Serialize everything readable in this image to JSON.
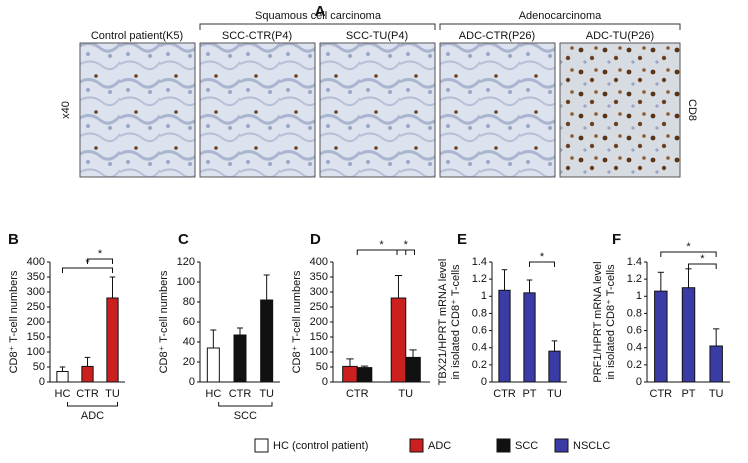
{
  "figure": {
    "panel_letters": [
      "A",
      "B",
      "C",
      "D",
      "E",
      "F"
    ],
    "image_groups": [
      "Squamous cell carcinoma",
      "Adenocarcinoma"
    ],
    "images": [
      "Control patient(K5)",
      "SCC-CTR(P4)",
      "SCC-TU(P4)",
      "ADC-CTR(P26)",
      "ADC-TU(P26)"
    ],
    "magnification": "x40",
    "stain": "CD8"
  },
  "legend": [
    {
      "label": "HC (control patient)",
      "color": "#ffffff"
    },
    {
      "label": "ADC",
      "color": "#cc1f1f"
    },
    {
      "label": "SCC",
      "color": "#111111"
    },
    {
      "label": "NSCLC",
      "color": "#3b3ba6"
    }
  ],
  "chart_data": [
    {
      "type": "bar",
      "ylabel": [
        "CD8⁺ T-cell numbers"
      ],
      "categories": [
        "HC",
        "CTR",
        "TU"
      ],
      "group_label": "ADC",
      "series": [
        {
          "colors": [
            "#ffffff",
            "#cc1f1f",
            "#cc1f1f"
          ],
          "values": [
            35,
            52,
            280
          ],
          "errors": [
            15,
            30,
            70
          ]
        }
      ],
      "ylim": [
        0,
        400
      ],
      "yticks": [
        0,
        50,
        100,
        150,
        200,
        250,
        300,
        350,
        400
      ],
      "significance": [
        "*",
        "*"
      ]
    },
    {
      "type": "bar",
      "ylabel": [
        "CD8⁺ T-cell numbers"
      ],
      "categories": [
        "HC",
        "CTR",
        "TU"
      ],
      "group_label": "SCC",
      "series": [
        {
          "colors": [
            "#ffffff",
            "#111111",
            "#111111"
          ],
          "values": [
            34,
            47,
            82
          ],
          "errors": [
            18,
            7,
            25
          ]
        }
      ],
      "ylim": [
        0,
        120
      ],
      "yticks": [
        0,
        20,
        40,
        60,
        80,
        100,
        120
      ],
      "significance": []
    },
    {
      "type": "bar",
      "ylabel": [
        "CD8⁺ T-cell numbers"
      ],
      "categories": [
        "CTR",
        "TU"
      ],
      "series": [
        {
          "colors": [
            "#cc1f1f",
            "#cc1f1f"
          ],
          "values": [
            52,
            280
          ],
          "errors": [
            25,
            75
          ]
        },
        {
          "colors": [
            "#111111",
            "#111111"
          ],
          "values": [
            48,
            82
          ],
          "errors": [
            5,
            25
          ]
        }
      ],
      "ylim": [
        0,
        400
      ],
      "yticks": [
        0,
        50,
        100,
        150,
        200,
        250,
        300,
        350,
        400
      ],
      "significance": [
        "*",
        "*"
      ]
    },
    {
      "type": "bar",
      "ylabel": [
        "TBX21/HPRT mRNA level",
        "in isolated CD8⁺ T-cells"
      ],
      "categories": [
        "CTR",
        "PT",
        "TU"
      ],
      "series": [
        {
          "colors": [
            "#3b3ba6",
            "#3b3ba6",
            "#3b3ba6"
          ],
          "values": [
            1.07,
            1.04,
            0.36
          ],
          "errors": [
            0.24,
            0.15,
            0.12
          ]
        }
      ],
      "ylim": [
        0,
        1.4
      ],
      "yticks": [
        0,
        0.2,
        0.4,
        0.6,
        0.8,
        1,
        1.2,
        1.4
      ],
      "significance": [
        "*"
      ]
    },
    {
      "type": "bar",
      "ylabel": [
        "PRF1/HPRT mRNA level",
        "in isolated CD8⁺ T-cells"
      ],
      "categories": [
        "CTR",
        "PT",
        "TU"
      ],
      "series": [
        {
          "colors": [
            "#3b3ba6",
            "#3b3ba6",
            "#3b3ba6"
          ],
          "values": [
            1.06,
            1.1,
            0.42
          ],
          "errors": [
            0.22,
            0.22,
            0.2
          ]
        }
      ],
      "ylim": [
        0,
        1.4
      ],
      "yticks": [
        0,
        0.2,
        0.4,
        0.6,
        0.8,
        1,
        1.2,
        1.4
      ],
      "significance": [
        "*",
        "*"
      ]
    }
  ]
}
